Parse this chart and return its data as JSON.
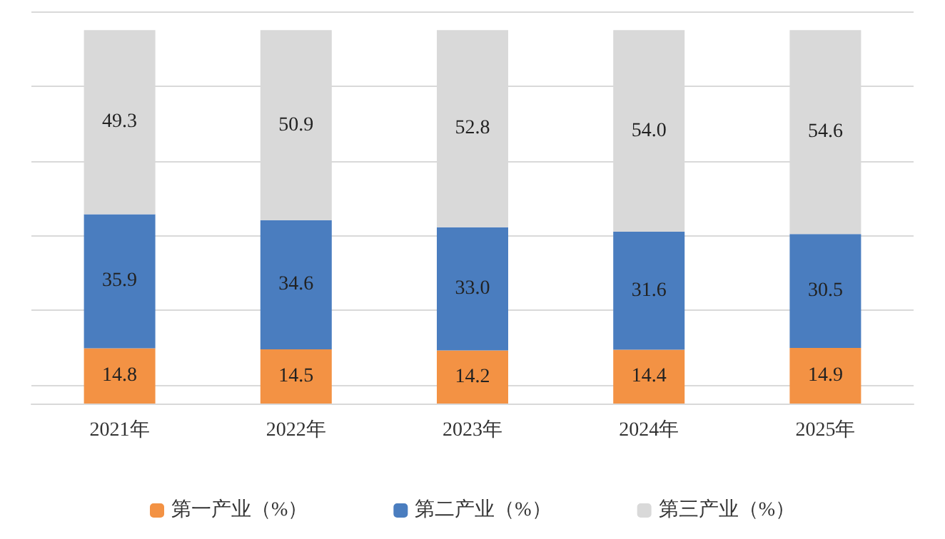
{
  "chart_data": {
    "type": "bar",
    "stacked": true,
    "categories": [
      "2021年",
      "2022年",
      "2023年",
      "2024年",
      "2025年"
    ],
    "series": [
      {
        "name": "第一产业（%）",
        "color": "#f39244",
        "values": [
          14.8,
          14.5,
          14.2,
          14.4,
          14.9
        ],
        "value_labels": [
          "14.8",
          "14.5",
          "14.2",
          "14.4",
          "14.9"
        ]
      },
      {
        "name": "第二产业（%）",
        "color": "#4a7dbf",
        "values": [
          35.9,
          34.6,
          33.0,
          31.6,
          30.5
        ],
        "value_labels": [
          "35.9",
          "34.6",
          "33.0",
          "31.6",
          "30.5"
        ]
      },
      {
        "name": "第三产业（%）",
        "color": "#d9d9d9",
        "values": [
          49.3,
          50.9,
          52.8,
          54.0,
          54.6
        ],
        "value_labels": [
          "49.3",
          "50.9",
          "52.8",
          "54.0",
          "54.6"
        ]
      }
    ],
    "ylim": [
      0,
      105
    ],
    "yticks": [
      {
        "value": 5,
        "label": null
      },
      {
        "value": 25,
        "label": null
      },
      {
        "value": 45,
        "label": null
      },
      {
        "value": 65,
        "label": null
      },
      {
        "value": 85,
        "label": null
      },
      {
        "value": 105,
        "label": null
      }
    ],
    "tick_labels": "x",
    "grid": "y",
    "legend": "bottom"
  }
}
